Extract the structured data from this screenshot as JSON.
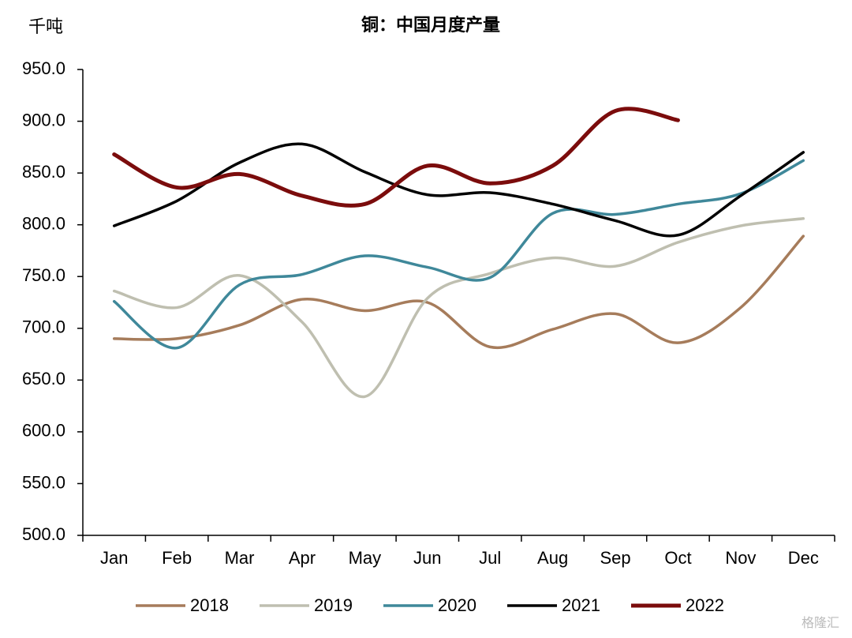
{
  "chart_data": {
    "type": "line",
    "title": "铜：中国月度产量",
    "y_unit": "千吨",
    "watermark": "格隆汇",
    "categories": [
      "Jan",
      "Feb",
      "Mar",
      "Apr",
      "May",
      "Jun",
      "Jul",
      "Aug",
      "Sep",
      "Oct",
      "Nov",
      "Dec"
    ],
    "series": [
      {
        "name": "2018",
        "color": "#a67c5b",
        "values": [
          690,
          690,
          703,
          728,
          717,
          725,
          682,
          699,
          714,
          686,
          720,
          789
        ]
      },
      {
        "name": "2019",
        "color": "#bfbfb0",
        "values": [
          736,
          720,
          751,
          706,
          634,
          729,
          753,
          768,
          760,
          783,
          799,
          806
        ]
      },
      {
        "name": "2020",
        "color": "#3f889a",
        "values": [
          726,
          681,
          742,
          752,
          770,
          759,
          749,
          811,
          810,
          820,
          830,
          862
        ]
      },
      {
        "name": "2021",
        "color": "#000000",
        "values": [
          799,
          823,
          860,
          878,
          851,
          829,
          831,
          820,
          804,
          790,
          828,
          870
        ]
      },
      {
        "name": "2022",
        "color": "#7b0c0c",
        "values": [
          868,
          836,
          849,
          828,
          820,
          857,
          840,
          857,
          910,
          901,
          null,
          null
        ]
      }
    ],
    "ylim": [
      500,
      950
    ],
    "yticks": [
      {
        "value": 500,
        "label": "500.0"
      },
      {
        "value": 550,
        "label": "550.0"
      },
      {
        "value": 600,
        "label": "600.0"
      },
      {
        "value": 650,
        "label": "650.0"
      },
      {
        "value": 700,
        "label": "700.0"
      },
      {
        "value": 750,
        "label": "750.0"
      },
      {
        "value": 800,
        "label": "800.0"
      },
      {
        "value": 850,
        "label": "850.0"
      },
      {
        "value": 900,
        "label": "900.0"
      },
      {
        "value": 950,
        "label": "950.0"
      }
    ],
    "grid": false,
    "legend": "bottom"
  }
}
